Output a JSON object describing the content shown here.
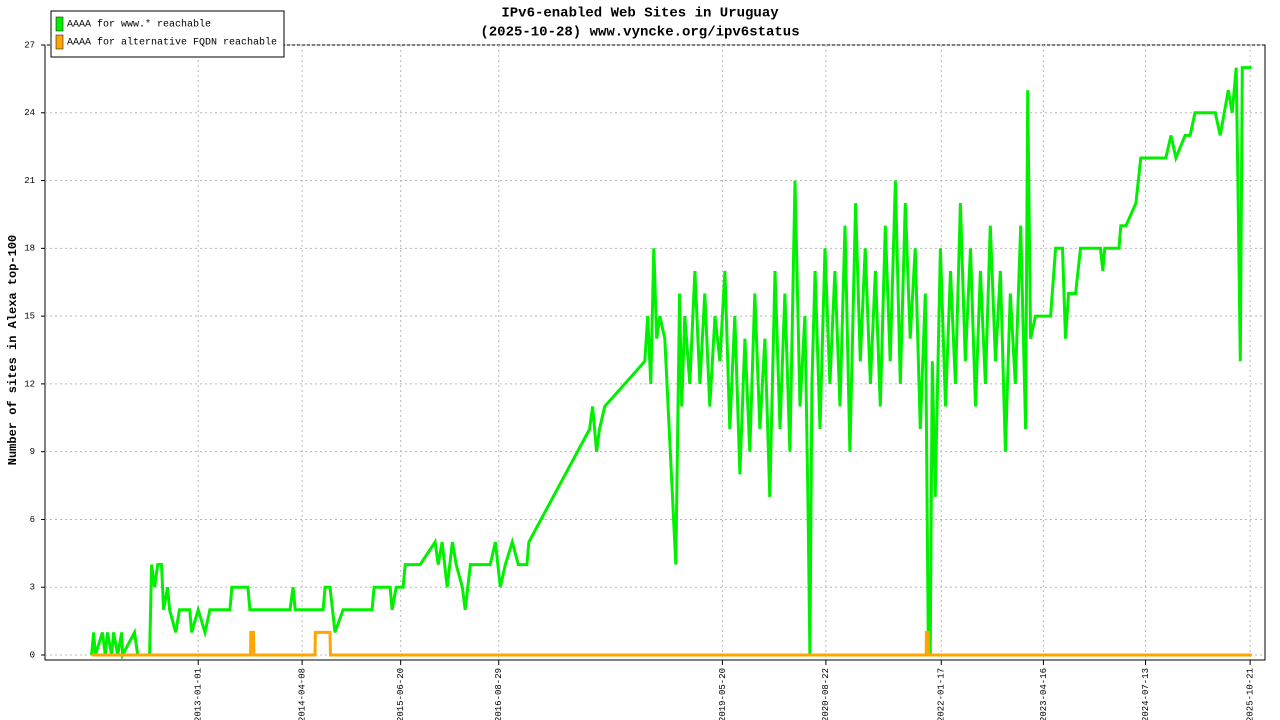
{
  "chart_data": {
    "type": "line",
    "title": "IPv6-enabled Web Sites in Uruguay",
    "subtitle": "(2025-10-28) www.vyncke.org/ipv6status",
    "y_label": "Number of sites in Alexa top-100",
    "xlim": [
      "2011-02-20",
      "2025-12-26"
    ],
    "xticks": [
      "2013-01-01",
      "2014-04-08",
      "2015-06-20",
      "2016-08-29",
      "2019-05-20",
      "2020-08-22",
      "2022-01-17",
      "2023-04-16",
      "2024-07-13",
      "2025-10-21"
    ],
    "ylim": [
      0,
      27
    ],
    "yticks": [
      0,
      3,
      6,
      9,
      12,
      15,
      18,
      21,
      24,
      27
    ],
    "grid": true,
    "legend": "top-left",
    "series": [
      {
        "name": "AAAA for www.* reachable",
        "color": "#00f000",
        "x": [
          "2011-09-15",
          "2011-09-24",
          "2011-10-02",
          "2011-11-02",
          "2011-11-15",
          "2011-11-25",
          "2011-12-13",
          "2011-12-22",
          "2012-01-09",
          "2012-01-27",
          "2012-01-31",
          "2012-03-24",
          "2012-04-07",
          "2012-05-30",
          "2012-06-08",
          "2012-06-21",
          "2012-07-05",
          "2012-07-22",
          "2012-07-31",
          "2012-08-18",
          "2012-08-27",
          "2012-09-23",
          "2012-10-10",
          "2012-11-24",
          "2012-12-03",
          "2013-01-01",
          "2013-01-31",
          "2013-02-22",
          "2013-05-22",
          "2013-05-31",
          "2013-08-10",
          "2013-08-19",
          "2014-02-13",
          "2014-02-27",
          "2014-03-08",
          "2014-07-10",
          "2014-07-19",
          "2014-08-10",
          "2014-09-01",
          "2014-10-07",
          "2015-02-13",
          "2015-02-22",
          "2015-05-04",
          "2015-05-13",
          "2015-05-31",
          "2015-07-01",
          "2015-07-10",
          "2015-09-15",
          "2015-11-20",
          "2015-12-04",
          "2015-12-21",
          "2016-01-13",
          "2016-02-05",
          "2016-02-22",
          "2016-03-20",
          "2016-04-02",
          "2016-04-25",
          "2016-07-22",
          "2016-08-14",
          "2016-09-05",
          "2016-09-27",
          "2016-10-28",
          "2016-11-24",
          "2017-01-01",
          "2017-01-10",
          "2017-10-07",
          "2017-10-20",
          "2017-11-07",
          "2017-11-20",
          "2017-12-13",
          "2018-06-09",
          "2018-06-22",
          "2018-07-06",
          "2018-07-19",
          "2018-08-01",
          "2018-08-15",
          "2018-09-06",
          "2018-10-25",
          "2018-11-11",
          "2018-11-20",
          "2018-12-04",
          "2018-12-26",
          "2019-01-18",
          "2019-02-09",
          "2019-03-03",
          "2019-03-25",
          "2019-04-17",
          "2019-05-09",
          "2019-05-31",
          "2019-06-22",
          "2019-07-14",
          "2019-08-06",
          "2019-08-28",
          "2019-09-19",
          "2019-10-11",
          "2019-11-03",
          "2019-11-25",
          "2019-12-17",
          "2020-01-09",
          "2020-01-31",
          "2020-02-22",
          "2020-03-15",
          "2020-04-07",
          "2020-04-29",
          "2020-05-21",
          "2020-06-03",
          "2020-06-12",
          "2020-06-21",
          "2020-07-05",
          "2020-07-27",
          "2020-08-18",
          "2020-09-09",
          "2020-10-01",
          "2020-10-24",
          "2020-11-15",
          "2020-12-07",
          "2021-01-01",
          "2021-01-22",
          "2021-02-13",
          "2021-03-08",
          "2021-03-30",
          "2021-04-21",
          "2021-05-13",
          "2021-06-04",
          "2021-06-27",
          "2021-07-19",
          "2021-08-10",
          "2021-09-01",
          "2021-09-23",
          "2021-10-16",
          "2021-11-07",
          "2021-11-20",
          "2021-11-29",
          "2021-12-08",
          "2021-12-21",
          "2022-01-13",
          "2022-02-05",
          "2022-02-27",
          "2022-03-21",
          "2022-04-12",
          "2022-05-04",
          "2022-05-27",
          "2022-06-18",
          "2022-07-10",
          "2022-08-01",
          "2022-08-23",
          "2022-09-15",
          "2022-10-07",
          "2022-10-29",
          "2022-11-20",
          "2022-12-12",
          "2023-01-05",
          "2023-01-27",
          "2023-02-05",
          "2023-02-18",
          "2023-03-12",
          "2023-05-18",
          "2023-06-09",
          "2023-07-10",
          "2023-07-23",
          "2023-08-06",
          "2023-09-06",
          "2023-09-28",
          "2023-12-26",
          "2024-01-05",
          "2024-01-14",
          "2024-03-17",
          "2024-03-25",
          "2024-04-17",
          "2024-05-31",
          "2024-06-22",
          "2024-10-11",
          "2024-11-03",
          "2024-11-25",
          "2025-01-05",
          "2025-01-27",
          "2025-02-18",
          "2025-05-19",
          "2025-06-10",
          "2025-07-16",
          "2025-08-02",
          "2025-08-20",
          "2025-08-29",
          "2025-09-07",
          "2025-09-16",
          "2025-10-28"
        ],
        "values": [
          0,
          1,
          0,
          1,
          0,
          1,
          0,
          1,
          0,
          1,
          0,
          1,
          0,
          0,
          4,
          3,
          4,
          4,
          2,
          3,
          2,
          1,
          2,
          2,
          1,
          2,
          1,
          2,
          2,
          3,
          3,
          2,
          2,
          3,
          2,
          2,
          3,
          3,
          1,
          2,
          2,
          3,
          3,
          2,
          3,
          3,
          4,
          4,
          5,
          4,
          5,
          3,
          5,
          4,
          3,
          2,
          4,
          4,
          5,
          3,
          4,
          5,
          4,
          4,
          5,
          10,
          11,
          9,
          10,
          11,
          13,
          15,
          12,
          18,
          14,
          15,
          14,
          4,
          16,
          11,
          15,
          12,
          17,
          12,
          16,
          11,
          15,
          13,
          17,
          10,
          15,
          8,
          14,
          9,
          16,
          10,
          14,
          7,
          17,
          10,
          16,
          9,
          21,
          11,
          15,
          7,
          0,
          12,
          17,
          10,
          18,
          12,
          17,
          11,
          19,
          9,
          20,
          13,
          18,
          12,
          17,
          11,
          19,
          13,
          21,
          12,
          20,
          14,
          18,
          10,
          16,
          1,
          0,
          13,
          7,
          18,
          11,
          17,
          12,
          20,
          13,
          18,
          11,
          17,
          12,
          19,
          13,
          17,
          9,
          16,
          12,
          19,
          10,
          25,
          14,
          15,
          15,
          18,
          18,
          14,
          16,
          16,
          18,
          18,
          17,
          18,
          18,
          19,
          19,
          20,
          22,
          22,
          23,
          22,
          23,
          23,
          24,
          24,
          23,
          25,
          24,
          26,
          20,
          13,
          26,
          26
        ]
      },
      {
        "name": "AAAA for alternative FQDN reachable",
        "color": "#ffa500",
        "x": [
          "2011-09-15",
          "2013-08-22",
          "2013-08-23",
          "2013-09-04",
          "2013-09-05",
          "2014-06-04",
          "2014-06-06",
          "2014-08-10",
          "2014-08-12",
          "2021-11-11",
          "2021-11-12",
          "2021-11-20",
          "2021-11-21",
          "2025-10-28"
        ],
        "values": [
          0,
          0,
          1,
          1,
          0,
          0,
          1,
          1,
          0,
          0,
          1,
          1,
          0,
          0
        ]
      }
    ]
  }
}
